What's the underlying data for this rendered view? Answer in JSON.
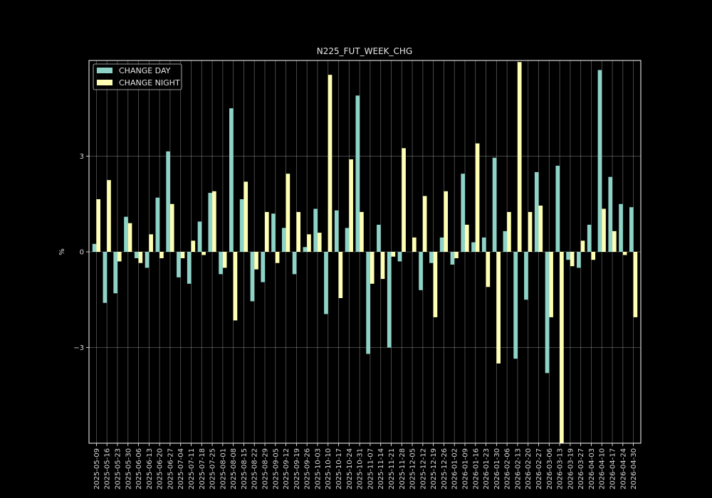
{
  "chart_data": {
    "type": "bar",
    "title": "N225_FUT_WEEK_CHG",
    "xlabel": "",
    "ylabel": "%",
    "ylim": [
      -6.0,
      6.0
    ],
    "yticks": [
      -3,
      0,
      3
    ],
    "ytick_labels": [
      "−3",
      "0",
      "3"
    ],
    "grid": true,
    "legend_position": "top-left",
    "categories": [
      "2025-05-09",
      "2025-05-16",
      "2025-05-23",
      "2025-05-30",
      "2025-06-06",
      "2025-06-13",
      "2025-06-20",
      "2025-06-27",
      "2025-07-04",
      "2025-07-11",
      "2025-07-18",
      "2025-07-25",
      "2025-08-01",
      "2025-08-08",
      "2025-08-15",
      "2025-08-22",
      "2025-08-29",
      "2025-09-05",
      "2025-09-12",
      "2025-09-19",
      "2025-09-26",
      "2025-10-03",
      "2025-10-10",
      "2025-10-17",
      "2025-10-24",
      "2025-10-31",
      "2025-11-07",
      "2025-11-14",
      "2025-11-21",
      "2025-11-28",
      "2025-12-05",
      "2025-12-12",
      "2025-12-19",
      "2025-12-26",
      "2026-01-02",
      "2026-01-09",
      "2026-01-16",
      "2026-01-23",
      "2026-01-30",
      "2026-02-06",
      "2026-02-13",
      "2026-02-20",
      "2026-02-27",
      "2026-03-06",
      "2026-03-13",
      "2026-03-19",
      "2026-03-27",
      "2026-04-03",
      "2026-04-10",
      "2026-04-17",
      "2026-04-24",
      "2026-04-30"
    ],
    "series": [
      {
        "name": "CHANGE DAY",
        "color": "#8dd3c7",
        "values": [
          0.25,
          -1.6,
          -1.3,
          1.1,
          -0.2,
          -0.5,
          1.7,
          3.15,
          -0.8,
          -1.0,
          0.95,
          1.85,
          -0.7,
          4.5,
          1.65,
          -1.55,
          -0.95,
          1.2,
          0.75,
          -0.7,
          0.15,
          1.35,
          -1.95,
          1.3,
          0.75,
          4.9,
          -3.2,
          0.85,
          -3.0,
          -0.3,
          0.0,
          -1.2,
          -0.35,
          0.45,
          -0.4,
          2.45,
          0.3,
          0.45,
          2.95,
          0.65,
          -3.35,
          -1.5,
          2.5,
          -3.8,
          2.7,
          -0.25,
          -0.5,
          0.85,
          5.7,
          2.35,
          1.5,
          1.4
        ]
      },
      {
        "name": "CHANGE NIGHT",
        "color": "#ffffb3",
        "values": [
          1.65,
          2.25,
          -0.3,
          0.9,
          -0.35,
          0.55,
          -0.2,
          1.5,
          -0.2,
          0.35,
          -0.1,
          1.9,
          -0.5,
          -2.15,
          2.2,
          -0.55,
          1.25,
          -0.35,
          2.45,
          1.25,
          0.55,
          0.6,
          5.55,
          -1.45,
          2.9,
          1.25,
          -1.0,
          -0.85,
          -0.15,
          3.25,
          0.45,
          1.75,
          -2.05,
          1.9,
          -0.2,
          0.85,
          3.4,
          -1.1,
          -3.5,
          1.25,
          5.95,
          1.25,
          1.45,
          -2.05,
          -6.0,
          -0.45,
          0.35,
          -0.25,
          1.35,
          0.65,
          -0.1,
          -2.05
        ]
      }
    ]
  }
}
